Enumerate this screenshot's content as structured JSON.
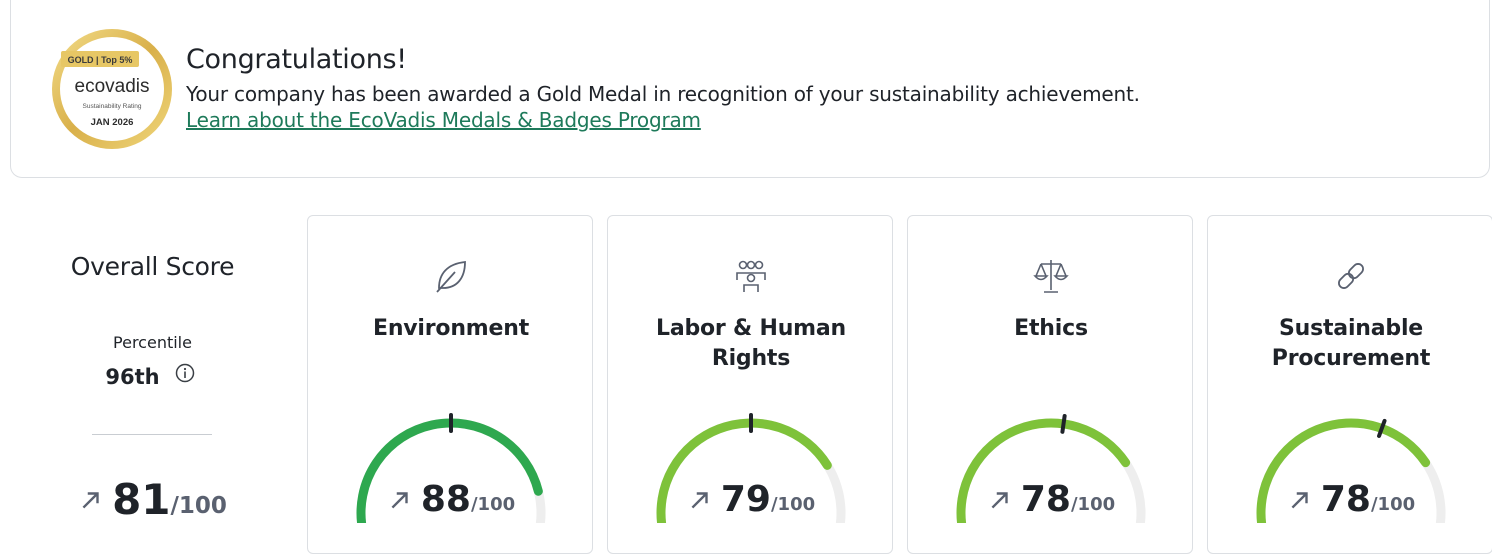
{
  "banner": {
    "medal": {
      "badge": "GOLD | Top 5%",
      "brand": "ecovadis",
      "rating": "Sustainability Rating",
      "date": "JAN 2026"
    },
    "title": "Congratulations!",
    "message": "Your company has been awarded a Gold Medal in recognition of your sustainability achievement.",
    "link": "Learn about the EcoVadis Medals & Badges Program"
  },
  "overall": {
    "title": "Overall Score",
    "percentile_label": "Percentile",
    "percentile": "96th",
    "score": "81",
    "out_of": "/100"
  },
  "themes": [
    {
      "title": "Environment",
      "score": "88",
      "out_of": "/100",
      "score_value": 88,
      "color": "#2ea84f",
      "icon": "leaf-icon"
    },
    {
      "title": "Labor & Human Rights",
      "score": "79",
      "out_of": "/100",
      "score_value": 79,
      "color": "#7ec23a",
      "icon": "people-icon"
    },
    {
      "title": "Ethics",
      "score": "78",
      "out_of": "/100",
      "score_value": 78,
      "color": "#7ec23a",
      "icon": "scales-icon"
    },
    {
      "title": "Sustainable Procurement",
      "score": "78",
      "out_of": "/100",
      "score_value": 78,
      "color": "#7ec23a",
      "icon": "link-icon"
    }
  ],
  "colors": {
    "link": "#1e7a5a",
    "gauge_track": "#eeeeee",
    "marker": "#1f2329"
  }
}
